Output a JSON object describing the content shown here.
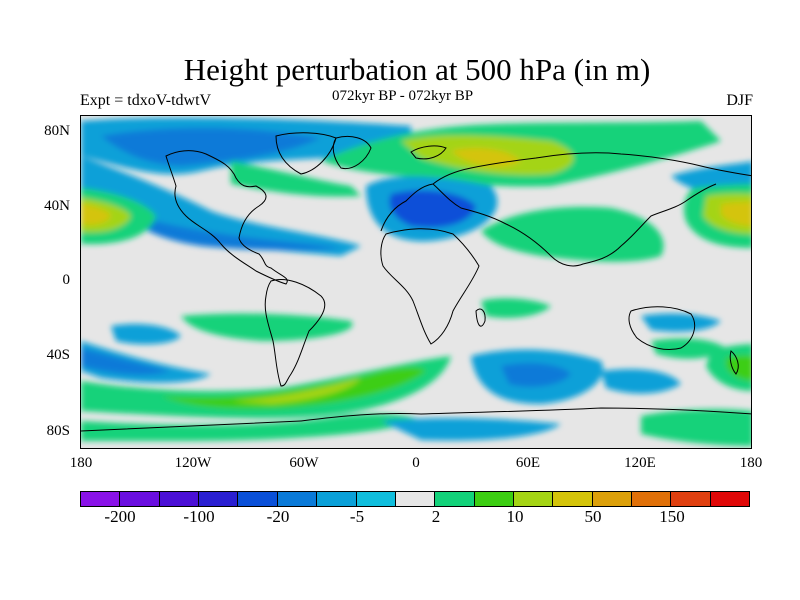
{
  "header": {
    "title": "Height perturbation at 500 hPa (in m)",
    "left_label": "Expt = tdxoV-tdwtV",
    "center_label": "072kyr BP - 072kyr BP",
    "right_label": "DJF"
  },
  "axes": {
    "lat_labels": [
      "80N",
      "40N",
      "0",
      "40S",
      "80S"
    ],
    "lon_labels": [
      "180",
      "120W",
      "60W",
      "0",
      "60E",
      "120E",
      "180"
    ]
  },
  "colorbar": {
    "colors": [
      "#8a12e8",
      "#6a0ee0",
      "#4b10d6",
      "#2a1fd2",
      "#0a50d8",
      "#0a7ad8",
      "#0aa0d8",
      "#10bedd",
      "#e6e6e6",
      "#12d27a",
      "#3cce12",
      "#a4d414",
      "#d4c40a",
      "#dca00a",
      "#e07008",
      "#e04010",
      "#e00808"
    ],
    "labels": [
      "-200",
      "-100",
      "-20",
      "-5",
      "2",
      "10",
      "50",
      "150"
    ]
  },
  "colors": {
    "background_gray": "#e6e6e6",
    "coast": "#000000"
  }
}
